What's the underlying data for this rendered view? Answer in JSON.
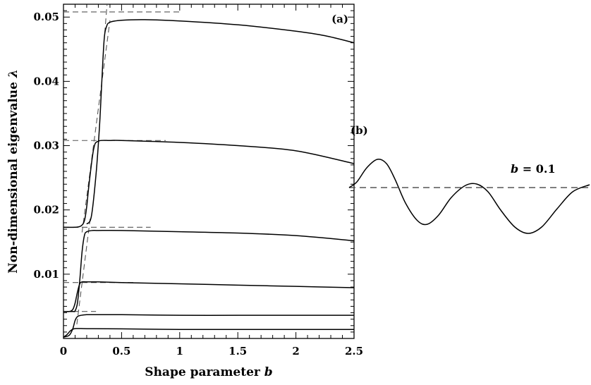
{
  "chart_data": [
    {
      "type": "line",
      "panel_label": "(a)",
      "xlabel": "Shape parameter b",
      "ylabel": "Non-dimensional eigenvalue λ",
      "xlim": [
        0,
        2.5
      ],
      "ylim": [
        0,
        0.052
      ],
      "x_ticks": [
        "0",
        "0.5",
        "1",
        "1.5",
        "2",
        "2.5"
      ],
      "y_ticks": [
        "0.01",
        "0.02",
        "0.03",
        "0.04",
        "0.05"
      ],
      "x_tick_values": [
        0,
        0.5,
        1,
        1.5,
        2,
        2.5
      ],
      "y_tick_values": [
        0.01,
        0.02,
        0.03,
        0.04,
        0.05
      ],
      "grid": false,
      "series": [
        {
          "x": [
            0,
            0.03,
            0.06,
            0.09,
            0.12,
            0.15,
            0.25,
            0.5,
            1,
            1.5,
            2,
            2.5
          ],
          "values": [
            0.0002,
            0.0006,
            0.0012,
            0.0015,
            0.00155,
            0.00155,
            0.00152,
            0.0015,
            0.0014,
            0.0014,
            0.0014,
            0.0014
          ]
        },
        {
          "x": [
            0,
            0.05,
            0.08,
            0.1,
            0.12,
            0.15,
            0.2,
            0.3,
            0.5,
            1,
            1.5,
            2,
            2.5
          ],
          "values": [
            0.0002,
            0.0005,
            0.0015,
            0.0028,
            0.0034,
            0.0036,
            0.0037,
            0.0037,
            0.0037,
            0.0036,
            0.0036,
            0.0036,
            0.0036
          ]
        },
        {
          "x": [
            0,
            0.05,
            0.08,
            0.1,
            0.12,
            0.14,
            0.16,
            0.2,
            0.3,
            0.5,
            1,
            1.5,
            2,
            2.5
          ],
          "values": [
            0.0042,
            0.0042,
            0.0045,
            0.0055,
            0.0072,
            0.0085,
            0.0088,
            0.0088,
            0.0088,
            0.0087,
            0.0085,
            0.0083,
            0.0081,
            0.0079
          ]
        },
        {
          "x": [
            0,
            0.08,
            0.1,
            0.12,
            0.14,
            0.16,
            0.18,
            0.2,
            0.25,
            0.3,
            0.5,
            1,
            1.5,
            2,
            2.5
          ],
          "values": [
            0.0042,
            0.0042,
            0.0043,
            0.0055,
            0.009,
            0.0135,
            0.016,
            0.0166,
            0.0168,
            0.0168,
            0.0168,
            0.0166,
            0.0164,
            0.016,
            0.0152
          ]
        },
        {
          "x": [
            0,
            0.1,
            0.15,
            0.18,
            0.2,
            0.22,
            0.26,
            0.3,
            0.4,
            0.5,
            1,
            1.5,
            2,
            2.5
          ],
          "values": [
            0.0173,
            0.0173,
            0.0175,
            0.0183,
            0.0205,
            0.024,
            0.0295,
            0.0307,
            0.0308,
            0.0308,
            0.0305,
            0.03,
            0.0292,
            0.0272
          ]
        },
        {
          "x": [
            0.2,
            0.24,
            0.28,
            0.31,
            0.33,
            0.35,
            0.37,
            0.4,
            0.5,
            0.7,
            1,
            1.5,
            2,
            2.25,
            2.5
          ],
          "values": [
            0.0178,
            0.019,
            0.0255,
            0.033,
            0.04,
            0.0465,
            0.0485,
            0.0492,
            0.0495,
            0.0496,
            0.0494,
            0.0488,
            0.0478,
            0.0471,
            0.046
          ]
        }
      ],
      "asymptotes": [
        {
          "y": 0.0042,
          "x_range": [
            0,
            0.28
          ]
        },
        {
          "y": 0.0087,
          "x_range": [
            0,
            0.62
          ]
        },
        {
          "y": 0.0173,
          "x_range": [
            0,
            0.75
          ]
        },
        {
          "y": 0.0308,
          "x_range": [
            0,
            0.88
          ]
        },
        {
          "y": 0.0508,
          "x_range": [
            0,
            1.0
          ]
        }
      ],
      "slanted_dashed": [
        {
          "x": [
            0.115,
            0.23
          ],
          "values": [
            0.0022,
            0.0187
          ]
        },
        {
          "x": [
            0.16,
            0.4
          ],
          "values": [
            0.0165,
            0.0495
          ]
        },
        {
          "x": [
            0.355,
            0.375
          ],
          "values": [
            0.0475,
            0.052
          ]
        }
      ]
    },
    {
      "type": "line",
      "panel_label": "(b)",
      "annotation": "b = 0.1",
      "annotation_italic_part": "b",
      "annotation_rest": " = 0.1",
      "grid": false
    }
  ]
}
